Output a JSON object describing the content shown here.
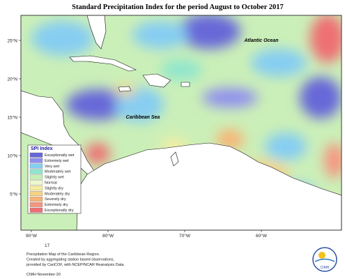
{
  "map": {
    "title": "Standard Precipitation Index for the period August to October 2017",
    "region_labels": [
      "Atlantic Ocean",
      "Caribbean Sea"
    ],
    "lat_labels": [
      "25°N",
      "20°N",
      "15°N",
      "10°N",
      "5°N"
    ],
    "lon_labels": [
      "90°W",
      "80°W",
      "70°W",
      "60°W"
    ]
  },
  "legend": {
    "title": "SPI Index",
    "items": [
      {
        "label": "Exceptionally wet",
        "color": "#6767d8"
      },
      {
        "label": "Extremely wet",
        "color": "#8f8fee"
      },
      {
        "label": "Very wet",
        "color": "#86cdf2"
      },
      {
        "label": "Moderately wet",
        "color": "#8fe6cc"
      },
      {
        "label": "Slightly wet",
        "color": "#c6efb6"
      },
      {
        "label": "Normal",
        "color": "#eef8cf"
      },
      {
        "label": "Slightly dry",
        "color": "#f6eea0"
      },
      {
        "label": "Moderately dry",
        "color": "#f6d284"
      },
      {
        "label": "Severely dry",
        "color": "#f7b474"
      },
      {
        "label": "Extremely dry",
        "color": "#f59580"
      },
      {
        "label": "Exceptionally dry",
        "color": "#ee6f72"
      }
    ]
  },
  "footer": {
    "page_number": "17",
    "lines": [
      "Precipitation Map of the Caribbean Region.",
      "Created by aggregating station based observations,",
      "provided by CariCOF, with NCEP/NCAR Reanalysis Data."
    ],
    "credit": "CIMH November-20"
  },
  "logo": {
    "text": "CIMH"
  }
}
